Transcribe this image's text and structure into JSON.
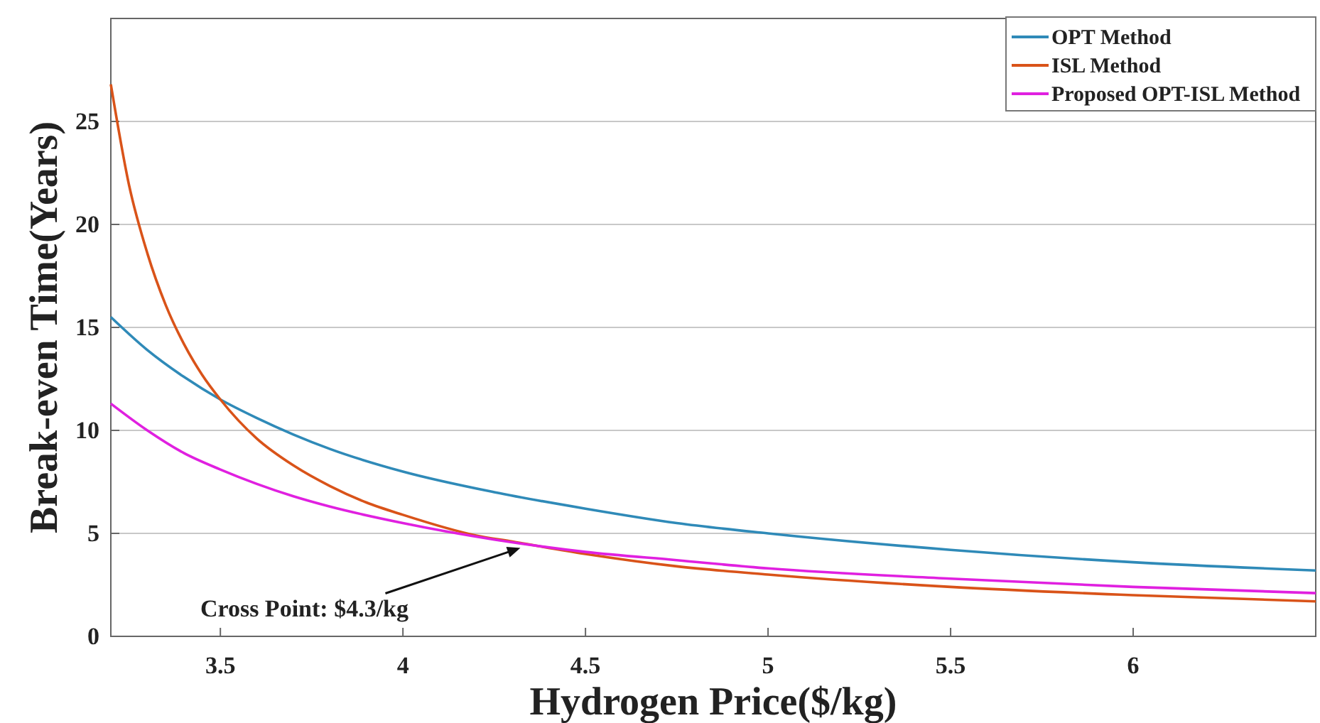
{
  "chart_data": {
    "type": "line",
    "xlabel": "Hydrogen Price($/kg)",
    "ylabel": "Break-even Time(Years)",
    "xlim": [
      3.2,
      6.5
    ],
    "xticks": [
      3.5,
      4,
      4.5,
      5,
      5.5,
      6
    ],
    "ylim": [
      0,
      30
    ],
    "yticks": [
      0,
      5,
      10,
      15,
      20,
      25
    ],
    "grid": "y",
    "legend": "top right",
    "line_style": "solid",
    "marker": "none",
    "annotations": [
      "Cross Point: $4.3/kg"
    ],
    "series": [
      {
        "name": "OPT Method",
        "color": "#2f8ab8",
        "x": [
          3.2,
          3.3,
          3.4,
          3.5,
          3.6,
          3.7,
          3.8,
          4,
          4.25,
          4.5,
          4.75,
          5,
          5.5,
          6,
          6.5
        ],
        "values": [
          15.5,
          13.9,
          12.6,
          11.5,
          10.6,
          9.8,
          9.1,
          8.0,
          7.0,
          6.2,
          5.5,
          5.0,
          4.2,
          3.6,
          3.2
        ]
      },
      {
        "name": "ISL Method",
        "color": "#d95319",
        "x": [
          3.2,
          3.25,
          3.3,
          3.35,
          3.4,
          3.45,
          3.5,
          3.6,
          3.7,
          3.8,
          3.9,
          4,
          4.2,
          4.3,
          4.5,
          4.75,
          5,
          5.5,
          6,
          6.5
        ],
        "values": [
          26.8,
          21.9,
          18.6,
          16.1,
          14.2,
          12.7,
          11.5,
          9.6,
          8.3,
          7.3,
          6.5,
          5.9,
          4.9,
          4.6,
          4.0,
          3.4,
          3.0,
          2.4,
          2.0,
          1.7
        ]
      },
      {
        "name": "Proposed OPT-ISL Method",
        "color": "#e020e0",
        "x": [
          3.2,
          3.3,
          3.4,
          3.5,
          3.6,
          3.7,
          3.8,
          4,
          4.25,
          4.5,
          4.75,
          5,
          5.5,
          6,
          6.5
        ],
        "values": [
          11.3,
          10.0,
          8.9,
          8.1,
          7.4,
          6.8,
          6.3,
          5.5,
          4.7,
          4.1,
          3.7,
          3.3,
          2.8,
          2.4,
          2.1
        ]
      }
    ]
  }
}
